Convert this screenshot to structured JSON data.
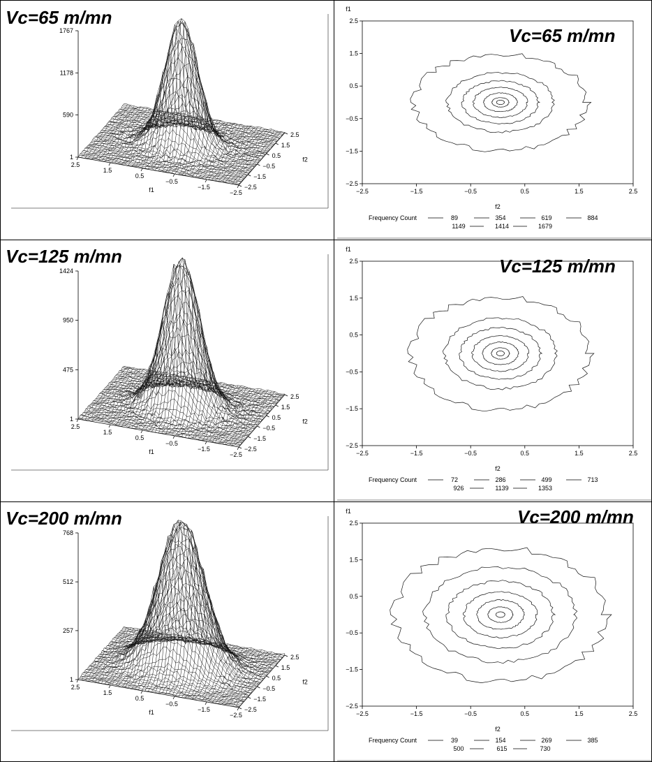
{
  "chart_data": [
    {
      "type": "surface3d",
      "condition": "Vc=65 m/mn",
      "z_ticks": [
        "1",
        "590",
        "1178",
        "1767"
      ],
      "zlim": [
        1,
        1767
      ],
      "peak": 1767,
      "f1_ticks": [
        "2.5",
        "1.5",
        "0.5",
        "−0.5",
        "−1.5",
        "−2.5"
      ],
      "f2_ticks": [
        "2.5",
        "1.5",
        "0.5",
        "−0.5",
        "−1.5",
        "−2.5"
      ],
      "x_label": "f1",
      "y_label": "f2",
      "range": [
        -2.5,
        2.5
      ],
      "spread": 0.5
    },
    {
      "type": "contour",
      "condition": "Vc=65 m/mn",
      "x_label": "f2",
      "y_label": "f1",
      "x_ticks": [
        "−2.5",
        "−1.5",
        "−0.5",
        "0.5",
        "1.5",
        "2.5"
      ],
      "y_ticks": [
        "2.5",
        "1.5",
        "0.5",
        "−0.5",
        "−1.5",
        "−2.5"
      ],
      "xlim": [
        -2.5,
        2.5
      ],
      "ylim": [
        -2.5,
        2.5
      ],
      "legend_title": "Frequency Count",
      "levels": [
        "89",
        "354",
        "619",
        "884",
        "1149",
        "1414",
        "1679"
      ],
      "contour_radii": [
        1.55,
        0.95,
        0.68,
        0.48,
        0.3,
        0.15,
        0.07
      ]
    },
    {
      "type": "surface3d",
      "condition": "Vc=125 m/mn",
      "z_ticks": [
        "1",
        "475",
        "950",
        "1424"
      ],
      "zlim": [
        1,
        1424
      ],
      "peak": 1424,
      "f1_ticks": [
        "2.5",
        "1.5",
        "0.5",
        "−0.5",
        "−1.5",
        "−2.5"
      ],
      "f2_ticks": [
        "2.5",
        "1.5",
        "0.5",
        "−0.5",
        "−1.5",
        "−2.5"
      ],
      "x_label": "f1",
      "y_label": "f2",
      "range": [
        -2.5,
        2.5
      ],
      "spread": 0.55
    },
    {
      "type": "contour",
      "condition": "Vc=125 m/mn",
      "x_label": "f2",
      "y_label": "f1",
      "x_ticks": [
        "−2.5",
        "−1.5",
        "−0.5",
        "0.5",
        "1.5",
        "2.5"
      ],
      "y_ticks": [
        "2.5",
        "1.5",
        "0.5",
        "−0.5",
        "−1.5",
        "−2.5"
      ],
      "xlim": [
        -2.5,
        2.5
      ],
      "ylim": [
        -2.5,
        2.5
      ],
      "legend_title": "Frequency Count",
      "levels": [
        "72",
        "286",
        "499",
        "713",
        "926",
        "1139",
        "1353"
      ],
      "contour_radii": [
        1.6,
        1.0,
        0.72,
        0.5,
        0.32,
        0.16,
        0.07
      ]
    },
    {
      "type": "surface3d",
      "condition": "Vc=200 m/mn",
      "z_ticks": [
        "1",
        "257",
        "512",
        "768"
      ],
      "zlim": [
        1,
        768
      ],
      "peak": 768,
      "f1_ticks": [
        "2.5",
        "1.5",
        "0.5",
        "−0.5",
        "−1.5",
        "−2.5"
      ],
      "f2_ticks": [
        "2.5",
        "1.5",
        "0.5",
        "−0.5",
        "−1.5",
        "−2.5"
      ],
      "x_label": "f1",
      "y_label": "f2",
      "range": [
        -2.5,
        2.5
      ],
      "spread": 0.7
    },
    {
      "type": "contour",
      "condition": "Vc=200 m/mn",
      "x_label": "f2",
      "y_label": "f1",
      "x_ticks": [
        "−2.5",
        "−1.5",
        "−0.5",
        "0.5",
        "1.5",
        "2.5"
      ],
      "y_ticks": [
        "2.5",
        "1.5",
        "0.5",
        "−0.5",
        "−1.5",
        "−2.5"
      ],
      "xlim": [
        -2.5,
        2.5
      ],
      "ylim": [
        -2.5,
        2.5
      ],
      "legend_title": "Frequency Count",
      "levels": [
        "39",
        "154",
        "269",
        "385",
        "500",
        "615",
        "730"
      ],
      "contour_radii": [
        1.9,
        1.35,
        0.95,
        0.65,
        0.42,
        0.22,
        0.08
      ]
    }
  ]
}
